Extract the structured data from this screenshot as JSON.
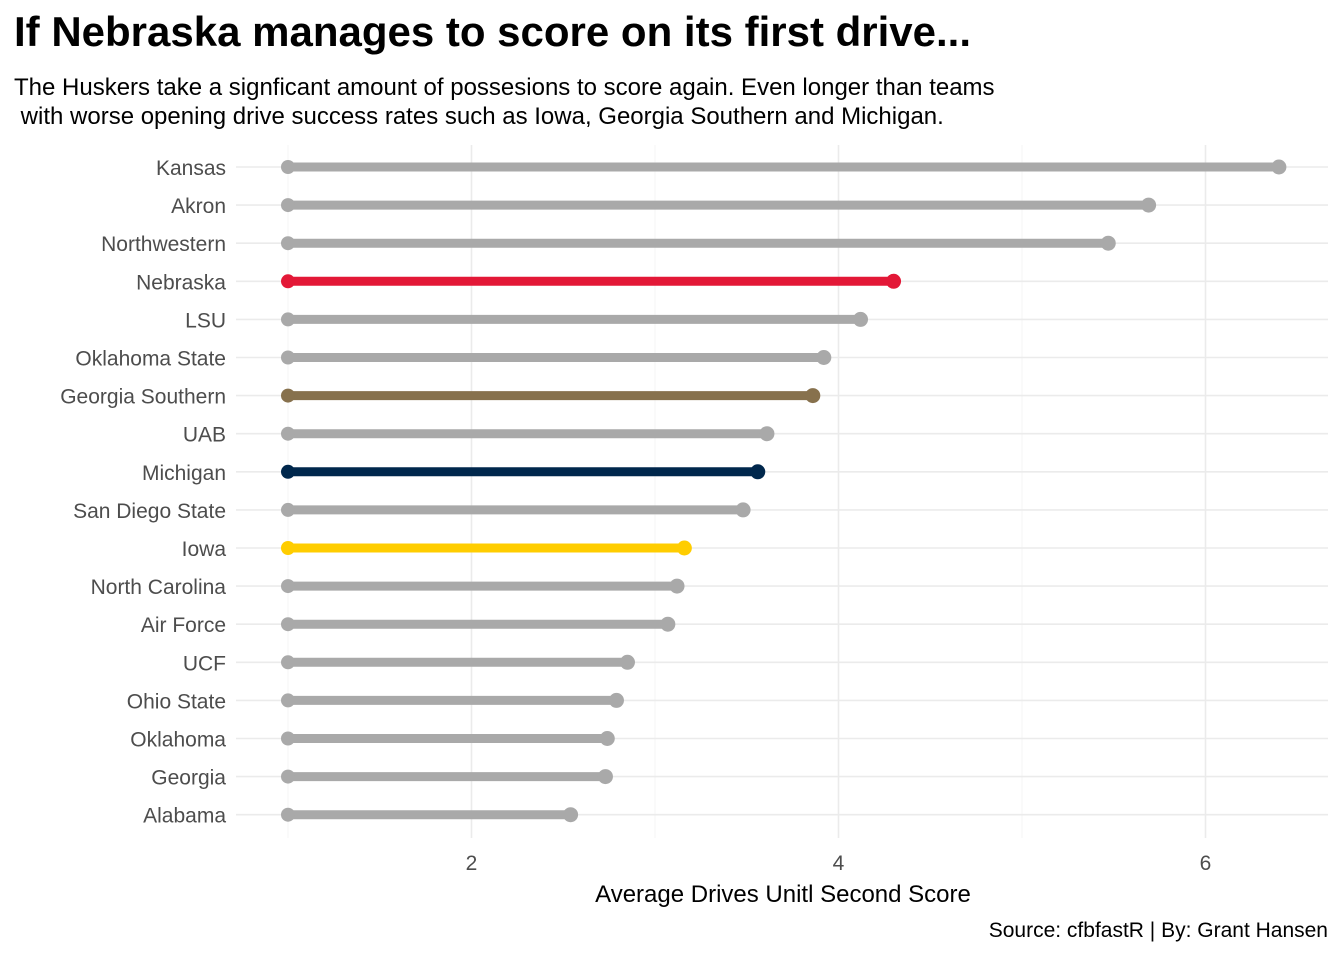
{
  "title": "If Nebraska manages to score on its first drive...",
  "subtitle": "The Huskers take a signficant amount of possesions to score again. Even longer than teams\n with worse opening drive success rates such as Iowa, Georgia Southern and Michigan.",
  "caption": "Source: cfbfastR | By: Grant Hansen",
  "colors": {
    "default": "#A9A9A9",
    "Nebraska": "#E31837",
    "Georgia Southern": "#87714D",
    "Michigan": "#00274C",
    "Iowa": "#FFCD00",
    "grid": "#EBEBEB",
    "tick_text": "#4D4D4D"
  },
  "chart_data": {
    "type": "dumbbell",
    "xlabel": "Average Drives Unitl Second Score",
    "ylabel": "",
    "xlim": [
      0.9,
      7.0
    ],
    "xticks": [
      2,
      4,
      6
    ],
    "grid": true,
    "categories": [
      "Kansas",
      "Akron",
      "Northwestern",
      "Nebraska",
      "LSU",
      "Oklahoma State",
      "Georgia Southern",
      "UAB",
      "Michigan",
      "San Diego State",
      "Iowa",
      "North Carolina",
      "Air Force",
      "UCF",
      "Ohio State",
      "Oklahoma",
      "Georgia",
      "Alabama"
    ],
    "start": [
      1,
      1,
      1,
      1,
      1,
      1,
      1,
      1,
      1,
      1,
      1,
      1,
      1,
      1,
      1,
      1,
      1,
      1
    ],
    "values": [
      6.4,
      5.69,
      5.47,
      4.3,
      4.12,
      3.92,
      3.86,
      3.61,
      3.56,
      3.48,
      3.16,
      3.12,
      3.07,
      2.85,
      2.79,
      2.74,
      2.73,
      2.54
    ]
  }
}
